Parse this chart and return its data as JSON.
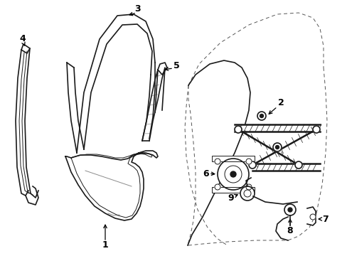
{
  "background_color": "#ffffff",
  "line_color": "#1a1a1a",
  "dashed_color": "#555555",
  "fig_width": 4.89,
  "fig_height": 3.6,
  "dpi": 100
}
